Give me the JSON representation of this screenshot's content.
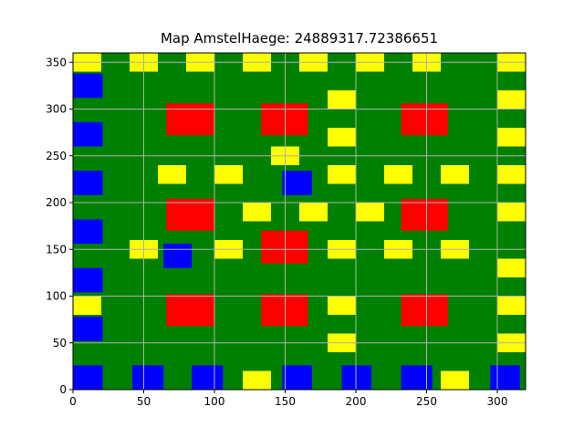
{
  "title": "Map AmstelHaege: 24889317.72386651",
  "colors": {
    "background": "#008000",
    "water": "#0000ff",
    "house_large": "#ff0000",
    "house_small": "#ffff00",
    "grid": "#b0b0b0"
  },
  "chart_data": {
    "type": "heatmap",
    "title": "Map AmstelHaege: 24889317.72386651",
    "xlim": [
      0,
      320
    ],
    "ylim": [
      0,
      360
    ],
    "xticks": [
      0,
      50,
      100,
      150,
      200,
      250,
      300
    ],
    "yticks": [
      0,
      50,
      100,
      150,
      200,
      250,
      300,
      350
    ],
    "grid": true,
    "rects": [
      {
        "kind": "water",
        "x0": 0,
        "x1": 21,
        "y0": 0,
        "y1": 26
      },
      {
        "kind": "water",
        "x0": 42,
        "x1": 64,
        "y0": 0,
        "y1": 26
      },
      {
        "kind": "water",
        "x0": 84,
        "x1": 106,
        "y0": 0,
        "y1": 26
      },
      {
        "kind": "water",
        "x0": 148,
        "x1": 169,
        "y0": 0,
        "y1": 26
      },
      {
        "kind": "water",
        "x0": 190,
        "x1": 211,
        "y0": 0,
        "y1": 26
      },
      {
        "kind": "water",
        "x0": 232,
        "x1": 254,
        "y0": 0,
        "y1": 26
      },
      {
        "kind": "water",
        "x0": 295,
        "x1": 316,
        "y0": 0,
        "y1": 26
      },
      {
        "kind": "water",
        "x0": 0,
        "x1": 21,
        "y0": 52,
        "y1": 78
      },
      {
        "kind": "water",
        "x0": 0,
        "x1": 21,
        "y0": 104,
        "y1": 130
      },
      {
        "kind": "water",
        "x0": 0,
        "x1": 21,
        "y0": 156,
        "y1": 182
      },
      {
        "kind": "water",
        "x0": 0,
        "x1": 21,
        "y0": 208,
        "y1": 234
      },
      {
        "kind": "water",
        "x0": 0,
        "x1": 21,
        "y0": 260,
        "y1": 286
      },
      {
        "kind": "water",
        "x0": 0,
        "x1": 21,
        "y0": 312,
        "y1": 338
      },
      {
        "kind": "water",
        "x0": 64,
        "x1": 84,
        "y0": 130,
        "y1": 156
      },
      {
        "kind": "water",
        "x0": 148,
        "x1": 169,
        "y0": 208,
        "y1": 234
      },
      {
        "kind": "house_large",
        "x0": 66,
        "x1": 100,
        "y0": 68,
        "y1": 102
      },
      {
        "kind": "house_large",
        "x0": 133,
        "x1": 166,
        "y0": 68,
        "y1": 102
      },
      {
        "kind": "house_large",
        "x0": 232,
        "x1": 265,
        "y0": 68,
        "y1": 102
      },
      {
        "kind": "house_large",
        "x0": 133,
        "x1": 166,
        "y0": 135,
        "y1": 170
      },
      {
        "kind": "house_large",
        "x0": 66,
        "x1": 100,
        "y0": 170,
        "y1": 204
      },
      {
        "kind": "house_large",
        "x0": 232,
        "x1": 265,
        "y0": 170,
        "y1": 204
      },
      {
        "kind": "house_large",
        "x0": 66,
        "x1": 100,
        "y0": 272,
        "y1": 306
      },
      {
        "kind": "house_large",
        "x0": 133,
        "x1": 166,
        "y0": 272,
        "y1": 306
      },
      {
        "kind": "house_large",
        "x0": 232,
        "x1": 265,
        "y0": 272,
        "y1": 306
      },
      {
        "kind": "house_small",
        "x0": 0,
        "x1": 20,
        "y0": 340,
        "y1": 360
      },
      {
        "kind": "house_small",
        "x0": 40,
        "x1": 60,
        "y0": 340,
        "y1": 360
      },
      {
        "kind": "house_small",
        "x0": 80,
        "x1": 100,
        "y0": 340,
        "y1": 360
      },
      {
        "kind": "house_small",
        "x0": 120,
        "x1": 140,
        "y0": 340,
        "y1": 360
      },
      {
        "kind": "house_small",
        "x0": 160,
        "x1": 180,
        "y0": 340,
        "y1": 360
      },
      {
        "kind": "house_small",
        "x0": 200,
        "x1": 220,
        "y0": 340,
        "y1": 360
      },
      {
        "kind": "house_small",
        "x0": 240,
        "x1": 260,
        "y0": 340,
        "y1": 360
      },
      {
        "kind": "house_small",
        "x0": 300,
        "x1": 320,
        "y0": 340,
        "y1": 360
      },
      {
        "kind": "house_small",
        "x0": 180,
        "x1": 200,
        "y0": 300,
        "y1": 320
      },
      {
        "kind": "house_small",
        "x0": 300,
        "x1": 320,
        "y0": 300,
        "y1": 320
      },
      {
        "kind": "house_small",
        "x0": 180,
        "x1": 200,
        "y0": 260,
        "y1": 280
      },
      {
        "kind": "house_small",
        "x0": 300,
        "x1": 320,
        "y0": 260,
        "y1": 280
      },
      {
        "kind": "house_small",
        "x0": 140,
        "x1": 160,
        "y0": 240,
        "y1": 260
      },
      {
        "kind": "house_small",
        "x0": 60,
        "x1": 80,
        "y0": 220,
        "y1": 240
      },
      {
        "kind": "house_small",
        "x0": 100,
        "x1": 120,
        "y0": 220,
        "y1": 240
      },
      {
        "kind": "house_small",
        "x0": 180,
        "x1": 200,
        "y0": 220,
        "y1": 240
      },
      {
        "kind": "house_small",
        "x0": 220,
        "x1": 240,
        "y0": 220,
        "y1": 240
      },
      {
        "kind": "house_small",
        "x0": 260,
        "x1": 280,
        "y0": 220,
        "y1": 240
      },
      {
        "kind": "house_small",
        "x0": 300,
        "x1": 320,
        "y0": 220,
        "y1": 240
      },
      {
        "kind": "house_small",
        "x0": 120,
        "x1": 140,
        "y0": 180,
        "y1": 200
      },
      {
        "kind": "house_small",
        "x0": 160,
        "x1": 180,
        "y0": 180,
        "y1": 200
      },
      {
        "kind": "house_small",
        "x0": 200,
        "x1": 220,
        "y0": 180,
        "y1": 200
      },
      {
        "kind": "house_small",
        "x0": 300,
        "x1": 320,
        "y0": 180,
        "y1": 200
      },
      {
        "kind": "house_small",
        "x0": 40,
        "x1": 60,
        "y0": 140,
        "y1": 160
      },
      {
        "kind": "house_small",
        "x0": 100,
        "x1": 120,
        "y0": 140,
        "y1": 160
      },
      {
        "kind": "house_small",
        "x0": 180,
        "x1": 200,
        "y0": 140,
        "y1": 160
      },
      {
        "kind": "house_small",
        "x0": 220,
        "x1": 240,
        "y0": 140,
        "y1": 160
      },
      {
        "kind": "house_small",
        "x0": 260,
        "x1": 280,
        "y0": 140,
        "y1": 160
      },
      {
        "kind": "house_small",
        "x0": 300,
        "x1": 320,
        "y0": 120,
        "y1": 140
      },
      {
        "kind": "house_small",
        "x0": 0,
        "x1": 20,
        "y0": 80,
        "y1": 100
      },
      {
        "kind": "house_small",
        "x0": 180,
        "x1": 200,
        "y0": 80,
        "y1": 100
      },
      {
        "kind": "house_small",
        "x0": 300,
        "x1": 320,
        "y0": 80,
        "y1": 100
      },
      {
        "kind": "house_small",
        "x0": 180,
        "x1": 200,
        "y0": 40,
        "y1": 60
      },
      {
        "kind": "house_small",
        "x0": 300,
        "x1": 320,
        "y0": 40,
        "y1": 60
      },
      {
        "kind": "house_small",
        "x0": 120,
        "x1": 140,
        "y0": 0,
        "y1": 20
      },
      {
        "kind": "house_small",
        "x0": 260,
        "x1": 280,
        "y0": 0,
        "y1": 20
      }
    ]
  }
}
